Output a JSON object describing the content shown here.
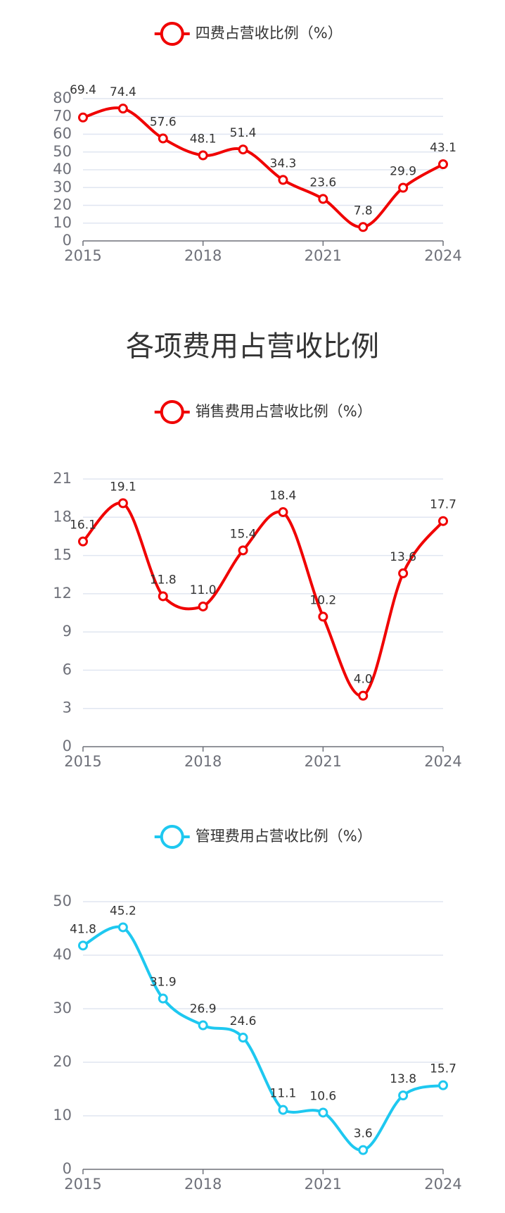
{
  "section_title": "各项费用占营收比例",
  "chart_data": [
    {
      "type": "line",
      "title": "",
      "x": [
        2015,
        2016,
        2017,
        2018,
        2019,
        2020,
        2021,
        2022,
        2023,
        2024
      ],
      "x_tick_labels": [
        "2015",
        "2018",
        "2021",
        "2024"
      ],
      "series": [
        {
          "name": "四费占营收比例（%）",
          "color": "#f00000",
          "values": [
            69.4,
            74.4,
            57.6,
            48.1,
            51.4,
            34.3,
            23.6,
            7.8,
            29.9,
            43.1
          ]
        }
      ],
      "ylim": [
        0,
        80
      ],
      "y_ticks": [
        0,
        10,
        20,
        30,
        40,
        50,
        60,
        70,
        80
      ],
      "grid": true,
      "legend": "top-center"
    },
    {
      "type": "line",
      "title": "",
      "x": [
        2015,
        2016,
        2017,
        2018,
        2019,
        2020,
        2021,
        2022,
        2023,
        2024
      ],
      "x_tick_labels": [
        "2015",
        "2018",
        "2021",
        "2024"
      ],
      "series": [
        {
          "name": "销售费用占营收比例（%）",
          "color": "#f00000",
          "values": [
            16.1,
            19.1,
            11.8,
            11.0,
            15.4,
            18.4,
            10.2,
            4.0,
            13.6,
            17.7
          ]
        }
      ],
      "ylim": [
        0,
        21
      ],
      "y_ticks": [
        0,
        3,
        6,
        9,
        12,
        15,
        18,
        21
      ],
      "grid": true,
      "legend": "top-center"
    },
    {
      "type": "line",
      "title": "",
      "x": [
        2015,
        2016,
        2017,
        2018,
        2019,
        2020,
        2021,
        2022,
        2023,
        2024
      ],
      "x_tick_labels": [
        "2015",
        "2018",
        "2021",
        "2024"
      ],
      "series": [
        {
          "name": "管理费用占营收比例（%）",
          "color": "#1ec8f0",
          "values": [
            41.8,
            45.2,
            31.9,
            26.9,
            24.6,
            11.1,
            10.6,
            3.6,
            13.8,
            15.7
          ]
        }
      ],
      "ylim": [
        0,
        50
      ],
      "y_ticks": [
        0,
        10,
        20,
        30,
        40,
        50
      ],
      "grid": true,
      "legend": "top-center"
    }
  ]
}
